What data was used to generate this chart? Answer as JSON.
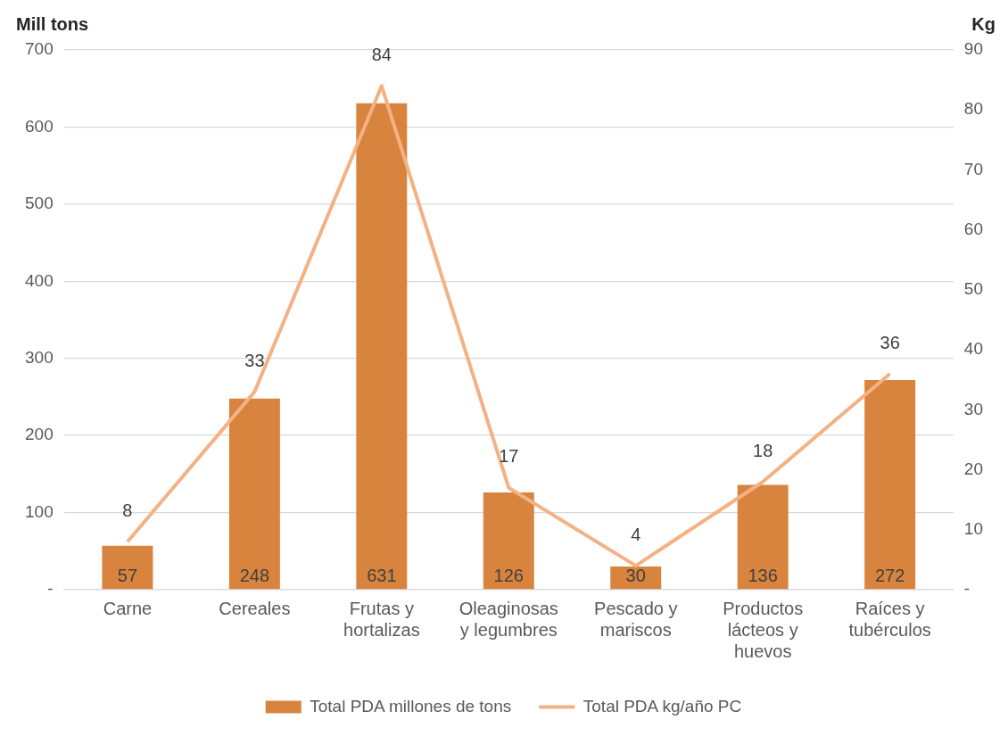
{
  "chart_data": {
    "type": "bar",
    "ylabel": "Mill tons",
    "y2label": "Kg",
    "categories": [
      "Carne",
      "Cereales",
      "Frutas y hortalizas",
      "Oleaginosas y legumbres",
      "Pescado y mariscos",
      "Productos lácteos y huevos",
      "Raíces y tubérculos"
    ],
    "series": [
      {
        "name": "Total PDA millones de tons",
        "color": "#d8843f",
        "values": [
          57,
          248,
          631,
          126,
          30,
          136,
          272
        ]
      },
      {
        "name": "Total PDA kg/año PC",
        "type": "line",
        "axis": "y2",
        "color": "#f4b183",
        "values": [
          8,
          33,
          84,
          17,
          4,
          18,
          36
        ]
      }
    ],
    "ylim": [
      0,
      700
    ],
    "yticks": [
      {
        "value": 0,
        "label": "-"
      },
      100,
      200,
      300,
      400,
      500,
      600,
      700
    ],
    "y2lim": [
      0,
      90
    ],
    "y2ticks": [
      {
        "value": 0,
        "label": "-"
      },
      10,
      20,
      30,
      40,
      50,
      60,
      70,
      80,
      90
    ],
    "grid": "y",
    "legend": "bottom",
    "data_labels": true,
    "marker": "none",
    "line_style": "solid"
  }
}
